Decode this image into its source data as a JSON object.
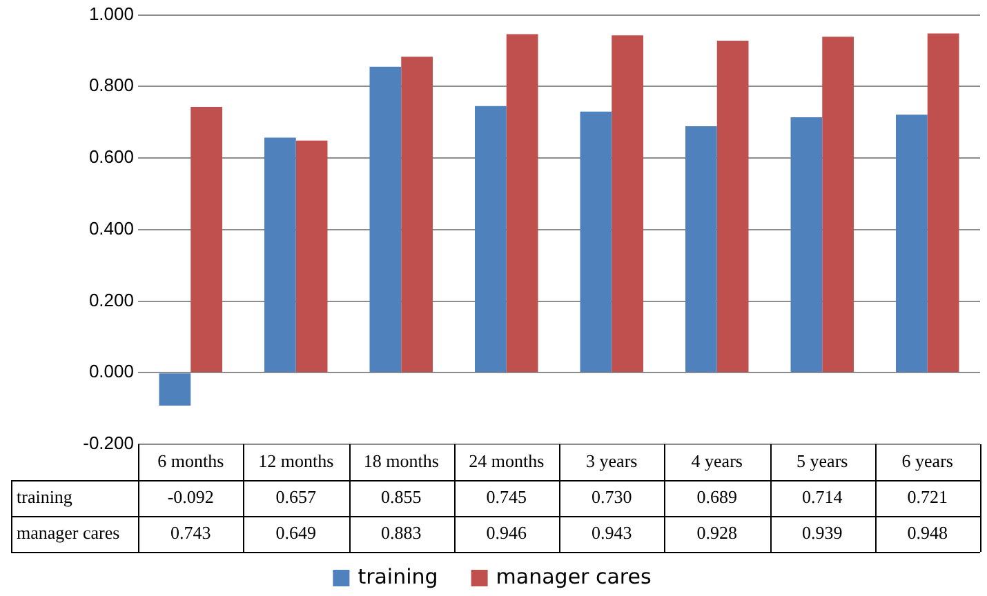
{
  "chart_data": {
    "type": "bar",
    "categories": [
      "6 months",
      "12 months",
      "18 months",
      "24 months",
      "3 years",
      "4 years",
      "5 years",
      "6 years"
    ],
    "series": [
      {
        "name": "training",
        "color": "#4f81bd",
        "values": [
          -0.092,
          0.657,
          0.855,
          0.745,
          0.73,
          0.689,
          0.714,
          0.721
        ],
        "value_labels": [
          "-0.092",
          "0.657",
          "0.855",
          "0.745",
          "0.730",
          "0.689",
          "0.714",
          "0.721"
        ]
      },
      {
        "name": "manager cares",
        "color": "#c0504d",
        "values": [
          0.743,
          0.649,
          0.883,
          0.946,
          0.943,
          0.928,
          0.939,
          0.948
        ],
        "value_labels": [
          "0.743",
          "0.649",
          "0.883",
          "0.946",
          "0.943",
          "0.928",
          "0.939",
          "0.948"
        ]
      }
    ],
    "ylim": [
      -0.2,
      1.0
    ],
    "yticks": [
      {
        "value": -0.2,
        "label": "-0.200"
      },
      {
        "value": 0,
        "label": "0.000"
      },
      {
        "value": 0.2,
        "label": "0.200"
      },
      {
        "value": 0.4,
        "label": "0.400"
      },
      {
        "value": 0.6,
        "label": "0.600"
      },
      {
        "value": 0.8,
        "label": "0.800"
      },
      {
        "value": 1.0,
        "label": "1.000"
      }
    ],
    "grid": "y",
    "legend": "bottom"
  }
}
